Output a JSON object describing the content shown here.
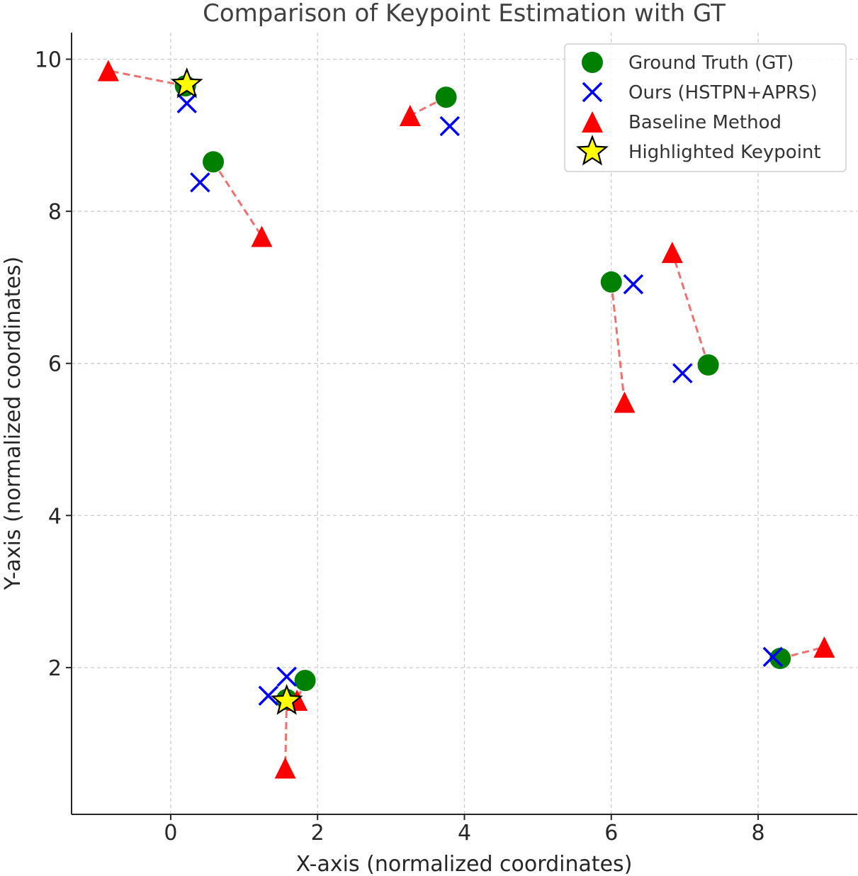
{
  "chart_data": {
    "type": "scatter",
    "title": "Comparison of Keypoint Estimation with GT",
    "xlabel": "X-axis (normalized coordinates)",
    "ylabel": "Y-axis (normalized coordinates)",
    "xlim": [
      -1.35,
      9.35
    ],
    "ylim": [
      0.07,
      10.35
    ],
    "xticks": [
      0,
      2,
      4,
      6,
      8
    ],
    "yticks": [
      2,
      4,
      6,
      8,
      10
    ],
    "xtick_labels": [
      "0",
      "2",
      "4",
      "6",
      "8"
    ],
    "ytick_labels": [
      "2",
      "4",
      "6",
      "8",
      "10"
    ],
    "grid": true,
    "legend_position": "top-right",
    "colors": {
      "gt": "#008000",
      "ours": "#0000ff",
      "baseline": "#ff0000",
      "highlight": "#ffff00",
      "error_line": "#f07070"
    },
    "legend": [
      {
        "key": "gt",
        "label": "Ground Truth (GT)"
      },
      {
        "key": "ours",
        "label": "Ours (HSTPN+APRS)"
      },
      {
        "key": "baseline",
        "label": "Baseline Method"
      },
      {
        "key": "highlight",
        "label": "Highlighted Keypoint"
      }
    ],
    "series": [
      {
        "name": "Ground Truth (GT)",
        "key": "gt",
        "points": [
          [
            0.2,
            9.65
          ],
          [
            0.58,
            8.65
          ],
          [
            3.75,
            9.5
          ],
          [
            6.0,
            7.07
          ],
          [
            7.32,
            5.98
          ],
          [
            8.3,
            2.12
          ],
          [
            1.83,
            1.83
          ],
          [
            1.58,
            1.58
          ]
        ]
      },
      {
        "name": "Ours (HSTPN+APRS)",
        "key": "ours",
        "points": [
          [
            0.22,
            9.42
          ],
          [
            0.4,
            8.38
          ],
          [
            3.8,
            9.12
          ],
          [
            6.3,
            7.04
          ],
          [
            6.97,
            5.87
          ],
          [
            8.2,
            2.14
          ],
          [
            1.58,
            1.88
          ],
          [
            1.33,
            1.63
          ]
        ]
      },
      {
        "name": "Baseline Method",
        "key": "baseline",
        "points": [
          [
            -0.85,
            9.85
          ],
          [
            1.24,
            7.67
          ],
          [
            3.26,
            9.26
          ],
          [
            6.18,
            5.49
          ],
          [
            6.83,
            7.46
          ],
          [
            8.9,
            2.27
          ],
          [
            1.72,
            1.57
          ],
          [
            1.56,
            0.68
          ]
        ]
      },
      {
        "name": "Highlighted Keypoint",
        "key": "highlight",
        "points": [
          [
            0.22,
            9.67
          ],
          [
            1.58,
            1.56
          ]
        ]
      }
    ],
    "error_lines": [
      [
        [
          0.2,
          9.65
        ],
        [
          -0.85,
          9.85
        ]
      ],
      [
        [
          0.58,
          8.65
        ],
        [
          1.24,
          7.67
        ]
      ],
      [
        [
          3.75,
          9.5
        ],
        [
          3.26,
          9.26
        ]
      ],
      [
        [
          6.0,
          7.07
        ],
        [
          6.18,
          5.49
        ]
      ],
      [
        [
          7.32,
          5.98
        ],
        [
          6.83,
          7.46
        ]
      ],
      [
        [
          8.3,
          2.12
        ],
        [
          8.9,
          2.27
        ]
      ],
      [
        [
          1.83,
          1.83
        ],
        [
          1.72,
          1.57
        ]
      ],
      [
        [
          1.58,
          1.58
        ],
        [
          1.56,
          0.68
        ]
      ]
    ]
  }
}
